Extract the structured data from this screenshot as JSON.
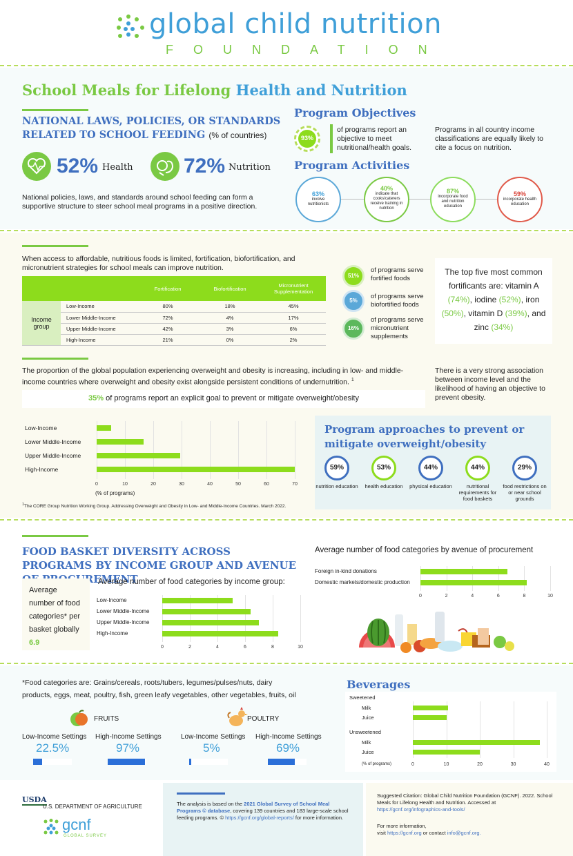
{
  "header": {
    "brand_main": "global child nutrition",
    "brand_sub": "FOUNDATION"
  },
  "title": {
    "part1": "School Meals for Lifelong",
    "part2": "Health and Nutrition"
  },
  "laws": {
    "heading_line1": "NATIONAL LAWS, POLICIES, OR STANDARDS",
    "heading_line2": "RELATED TO SCHOOL FEEDING",
    "heading_suffix": "(% of countries)",
    "health_pct": "52%",
    "health_label": "Health",
    "nutrition_pct": "72%",
    "nutrition_label": "Nutrition",
    "text": "National policies, laws, and standards around school feeding can form a supportive structure to steer school meal programs in a positive direction."
  },
  "objectives": {
    "heading": "Program Objectives",
    "pct": "93%",
    "text": "of programs report an objective to meet nutritional/health goals.",
    "side_text": "Programs in all country income classifications are equally likely to cite a focus on nutrition."
  },
  "activities": {
    "heading": "Program Activities",
    "items": [
      {
        "pct": "63%",
        "text": "involve nutritionists"
      },
      {
        "pct": "40%",
        "text": "indicate that cooks/caterers receive training in nutrition"
      },
      {
        "pct": "87%",
        "text": "incorporate food and nutrition education"
      },
      {
        "pct": "59%",
        "text": "incorporate health education"
      }
    ]
  },
  "fortification": {
    "intro": "When access to affordable, nutritious foods is limited, fortification, biofortification, and micronutrient strategies for school meals can improve nutrition.",
    "table": {
      "columns": [
        "Fortification",
        "Biofortification",
        "Micronutrient Supplementation"
      ],
      "group_label": "Income group",
      "rows": [
        {
          "label": "Low-Income",
          "values": [
            "80%",
            "18%",
            "45%"
          ]
        },
        {
          "label": "Lower Middle-Income",
          "values": [
            "72%",
            "4%",
            "17%"
          ]
        },
        {
          "label": "Upper Middle-Income",
          "values": [
            "42%",
            "3%",
            "6%"
          ]
        },
        {
          "label": "High-Income",
          "values": [
            "21%",
            "0%",
            "2%"
          ]
        }
      ]
    },
    "stats": [
      {
        "pct": "51%",
        "text": "of programs serve fortified foods"
      },
      {
        "pct": "5%",
        "text": "of programs serve biofortified foods"
      },
      {
        "pct": "16%",
        "text": "of programs serve micronutrient supplements"
      }
    ],
    "top_intro": "The top five most common fortificants are:",
    "fortificants": [
      {
        "name": "vitamin A",
        "pct": "(74%)"
      },
      {
        "name": "iodine",
        "pct": "(52%)"
      },
      {
        "name": "iron",
        "pct": "(50%)"
      },
      {
        "name": "vitamin D",
        "pct": "(39%)"
      },
      {
        "name": "zinc",
        "pct": "(34%)"
      }
    ]
  },
  "obesity": {
    "intro": "The proportion of the global population experiencing overweight and obesity is increasing, including in low- and middle-income countries where overweight and obesity exist alongside persistent conditions of undernutrition.",
    "footnote_mark": "1",
    "side_text": "There is a very strong association between income level and the likelihood of having an objective to prevent obesity.",
    "callout_pct": "35%",
    "callout_text": "of programs report an explicit goal to prevent or mitigate overweight/obesity",
    "footnote": "The CORE Group Nutrition Working Group. Addressing Overweight and Obesity in Low- and Middle-Income Countries. March 2022.",
    "approaches_heading": "Program approaches to prevent or mitigate overweight/obesity",
    "approaches": [
      {
        "pct": "59%",
        "text": "nutrition education"
      },
      {
        "pct": "53%",
        "text": "health education"
      },
      {
        "pct": "44%",
        "text": "physical education"
      },
      {
        "pct": "44%",
        "text": "nutritional requirements for food baskets"
      },
      {
        "pct": "29%",
        "text": "food restrictions on or near school grounds"
      }
    ]
  },
  "basket": {
    "heading": "FOOD BASKET DIVERSITY ACROSS PROGRAMS BY INCOME GROUP AND AVENUE OF PROCUREMENT",
    "avg_label": "Average number of food categories* per basket globally",
    "avg_value": "6.9",
    "footnote": "*Food categories are: Grains/cereals, roots/tubers, legumes/pulses/nuts, dairy products, eggs, meat, poultry, fish, green leafy vegetables, other vegetables, fruits, oil",
    "fruits": {
      "label": "FRUITS",
      "low_label": "Low-Income Settings",
      "low": "22.5%",
      "high_label": "High-Income Settings",
      "high": "97%"
    },
    "poultry": {
      "label": "POULTRY",
      "low_label": "Low-Income Settings",
      "low": "5%",
      "high_label": "High-Income Settings",
      "high": "69%"
    }
  },
  "footer": {
    "usda": "USDA",
    "usda_name": "U.S. DEPARTMENT OF AGRICULTURE",
    "gcnf": "gcnf",
    "gcnf_sub": "GLOBAL SURVEY",
    "analysis_pre": "The analysis is based on the",
    "analysis_link": "2021 Global Survey of School Meal Programs © database",
    "analysis_mid": ", covering 139 countries and 183 large-scale school feeding programs. ©",
    "analysis_url": "https://gcnf.org/global-reports/",
    "analysis_post": "for more information.",
    "citation": "Suggested Citation: Global Child Nutrition Foundation (GCNF). 2022. School Meals for Lifelong Health and Nutrition. Accessed at",
    "citation_url": "https://gcnf.org/infographics-and-tools/",
    "more_info": "For more information,",
    "visit_pre": "visit",
    "visit_url": "https://gcnf.org",
    "contact": "or contact",
    "email": "info@gcnf.org."
  },
  "chart_data": [
    {
      "type": "bar",
      "categories": [
        "Low-Income",
        "Lower Middle-Income",
        "Upper Middle-Income",
        "High-Income"
      ],
      "values": [
        5,
        16.5,
        29.5,
        70
      ],
      "xlabel": "(% of programs)",
      "xlim": [
        0,
        70
      ],
      "xticks": [
        "0",
        "10",
        "20",
        "30",
        "40",
        "50",
        "60",
        "70"
      ],
      "color": "#8ddc1c"
    },
    {
      "type": "bar",
      "title": "Average number of food categories by income group:",
      "categories": [
        "Low-Income",
        "Lower Middle-Income",
        "Upper Middle-Income",
        "High-Income"
      ],
      "values": [
        5.1,
        6.4,
        7,
        8.4
      ],
      "xlim": [
        0,
        10
      ],
      "xticks": [
        "0",
        "2",
        "4",
        "6",
        "8",
        "10"
      ],
      "color": "#8ddc1c"
    },
    {
      "type": "bar",
      "title": "Average number of food categories by avenue of procurement",
      "categories": [
        "Foreign in-kind donations",
        "Domestic markets/domestic production"
      ],
      "values": [
        6.7,
        8.2
      ],
      "xlim": [
        0,
        10
      ],
      "xticks": [
        "0",
        "2",
        "4",
        "6",
        "8",
        "10"
      ],
      "color": "#8ddc1c"
    },
    {
      "type": "bar",
      "title": "Beverages",
      "groups": [
        "Sweetened",
        "Unsweetened"
      ],
      "categories": [
        "Milk",
        "Juice",
        "Milk",
        "Juice"
      ],
      "values": [
        10.5,
        10,
        38,
        20
      ],
      "xlabel": "(% of programs)",
      "xlim": [
        0,
        40
      ],
      "xticks": [
        "0",
        "10",
        "20",
        "30",
        "40"
      ],
      "color": "#8ddc1c"
    }
  ]
}
